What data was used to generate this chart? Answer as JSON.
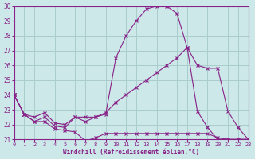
{
  "xlabel": "Windchill (Refroidissement éolien,°C)",
  "background_color": "#cce8e8",
  "grid_color": "#aacccc",
  "line_color": "#882288",
  "xlim": [
    0,
    23
  ],
  "ylim": [
    21,
    30
  ],
  "yticks": [
    21,
    22,
    23,
    24,
    25,
    26,
    27,
    28,
    29,
    30
  ],
  "xticks": [
    0,
    1,
    2,
    3,
    4,
    5,
    6,
    7,
    8,
    9,
    10,
    11,
    12,
    13,
    14,
    15,
    16,
    17,
    18,
    19,
    20,
    21,
    22,
    23
  ],
  "series": [
    {
      "x": [
        0,
        1,
        2,
        3,
        4,
        5,
        6,
        7,
        8,
        9,
        10,
        11,
        12,
        13,
        14,
        15,
        16,
        17,
        18,
        19,
        20,
        21,
        22,
        23
      ],
      "y": [
        24,
        22.7,
        22.2,
        22.2,
        21.7,
        21.6,
        21.5,
        20.9,
        21.1,
        21.4,
        21.4,
        21.4,
        21.4,
        21.4,
        21.4,
        21.4,
        21.4,
        21.4,
        21.4,
        21.4,
        21.1,
        21.0,
        21.0,
        21.0
      ]
    },
    {
      "x": [
        0,
        1,
        2,
        3,
        4,
        5,
        6,
        7,
        8,
        9,
        10,
        11,
        12,
        13,
        14,
        15,
        16,
        17,
        18,
        19,
        20,
        21,
        22,
        23
      ],
      "y": [
        24,
        22.7,
        22.2,
        22.5,
        21.9,
        21.8,
        22.5,
        22.5,
        22.5,
        22.7,
        26.5,
        28.0,
        29.0,
        29.8,
        30.0,
        30.0,
        29.5,
        27.2,
        22.9,
        21.8,
        21.0,
        21.0,
        21.0,
        21.0
      ]
    },
    {
      "x": [
        0,
        1,
        2,
        3,
        4,
        5,
        6,
        7,
        8,
        9,
        10,
        11,
        12,
        13,
        14,
        15,
        16,
        17,
        18,
        19,
        20,
        21,
        22,
        23
      ],
      "y": [
        24,
        22.7,
        22.5,
        22.8,
        22.1,
        22.0,
        22.5,
        22.2,
        22.5,
        22.8,
        23.5,
        24.0,
        24.5,
        25.0,
        25.5,
        26.0,
        26.5,
        27.2,
        26.0,
        25.8,
        25.8,
        22.9,
        21.8,
        21.0
      ]
    }
  ]
}
